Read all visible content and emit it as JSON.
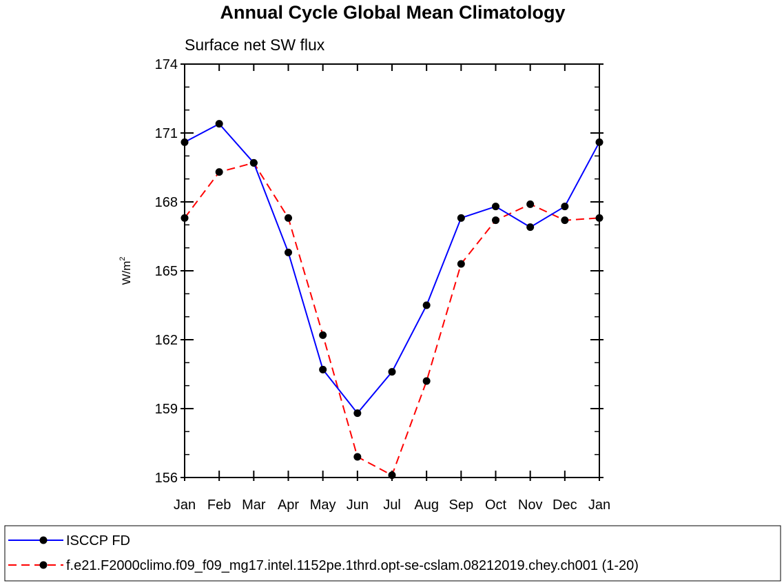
{
  "chart_data": {
    "type": "line",
    "title": "Annual Cycle Global Mean Climatology",
    "subtitle": "Surface net SW flux",
    "xlabel": "",
    "ylabel": "W/m",
    "ylabel_superscript": "2",
    "categories": [
      "Jan",
      "Feb",
      "Mar",
      "Apr",
      "May",
      "Jun",
      "Jul",
      "Aug",
      "Sep",
      "Oct",
      "Nov",
      "Dec",
      "Jan"
    ],
    "yticks": [
      156,
      159,
      162,
      165,
      168,
      171,
      174
    ],
    "ylim": [
      156,
      174
    ],
    "legend_position": "bottom",
    "series": [
      {
        "name": "ISCCP FD",
        "color": "#0000ff",
        "dash": "solid",
        "values": [
          170.6,
          171.4,
          169.7,
          165.8,
          160.7,
          158.8,
          160.6,
          163.5,
          167.3,
          167.8,
          166.9,
          167.8,
          170.6
        ]
      },
      {
        "name": "f.e21.F2000climo.f09_f09_mg17.intel.1152pe.1thrd.opt-se-cslam.08212019.chey.ch001 (1-20)",
        "color": "#ff0000",
        "dash": "dashed",
        "values": [
          167.3,
          169.3,
          169.7,
          167.3,
          162.2,
          156.9,
          156.1,
          160.2,
          165.3,
          167.2,
          167.9,
          167.2,
          167.3
        ]
      }
    ]
  }
}
